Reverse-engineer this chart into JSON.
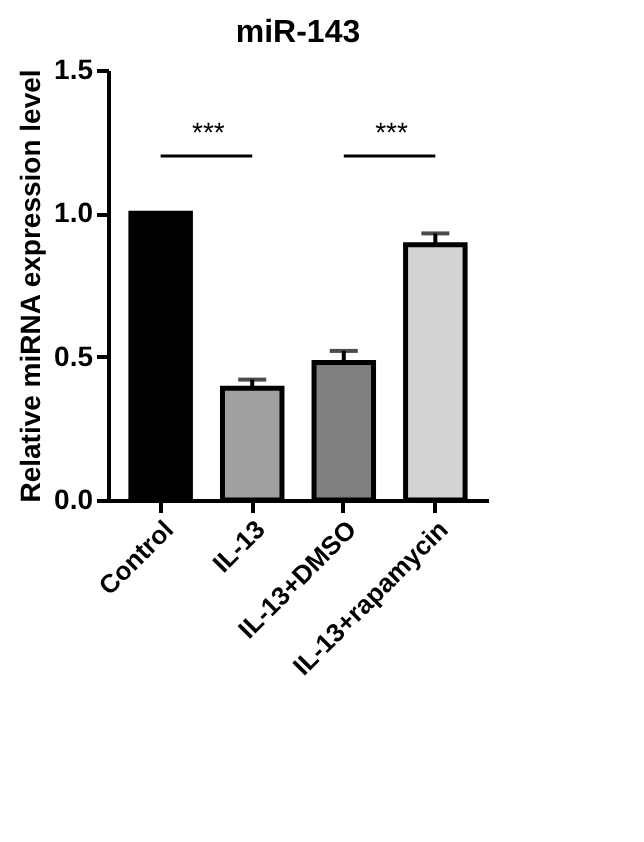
{
  "chart_data": {
    "type": "bar",
    "title": "miR-143",
    "ylabel": "Relative miRNA expression level",
    "categories": [
      "Control",
      "IL-13",
      "IL-13+DMSO",
      "IL-13+rapamycin"
    ],
    "values": [
      1.0,
      0.39,
      0.48,
      0.89
    ],
    "errors": [
      null,
      0.03,
      0.04,
      0.04
    ],
    "colors": [
      "#000000",
      "#a0a0a0",
      "#7f7f7f",
      "#d3d3d3"
    ],
    "ylim": [
      0,
      1.5
    ],
    "yticks": [
      {
        "value": 0,
        "label": "0.0"
      },
      0.5,
      {
        "value": 1,
        "label": "1.0"
      },
      1.5
    ],
    "annotations": [
      "***",
      "***"
    ],
    "grid": false
  }
}
